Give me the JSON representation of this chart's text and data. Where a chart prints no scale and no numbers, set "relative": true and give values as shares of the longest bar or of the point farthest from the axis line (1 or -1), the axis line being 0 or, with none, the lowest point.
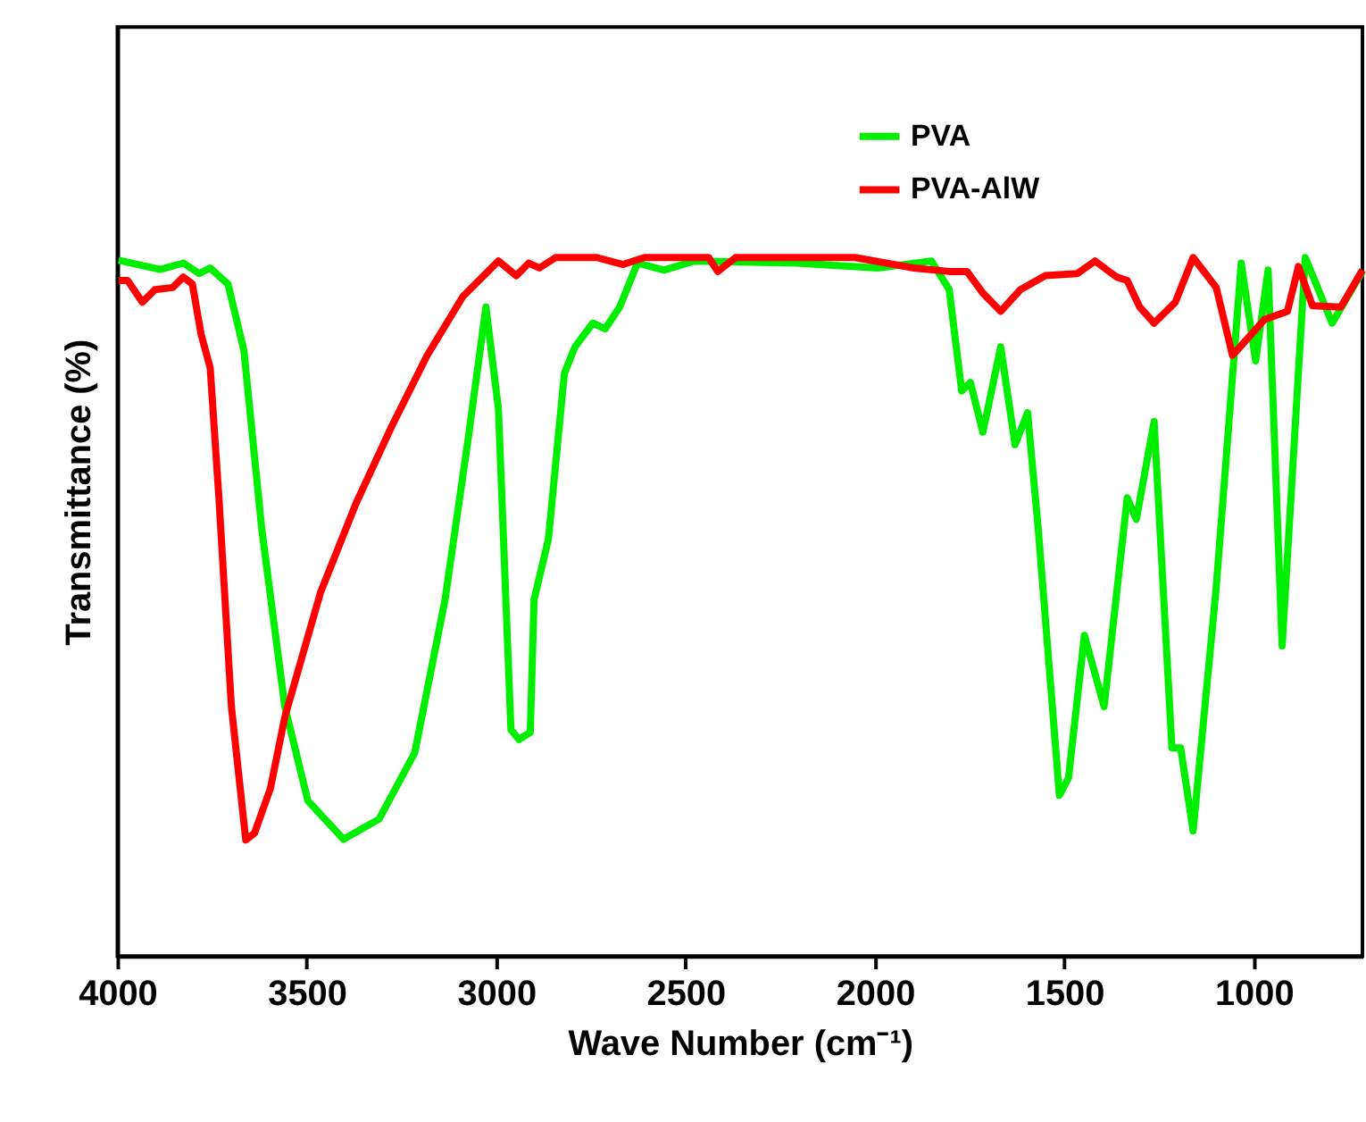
{
  "chart_data": {
    "type": "line",
    "relative": true,
    "xlabel": "Wave Number (cm⁻¹)",
    "ylabel": "Transmittance (%)",
    "xlim": [
      4000,
      713
    ],
    "xticks": [
      4000,
      3500,
      3000,
      2500,
      2000,
      1500,
      1000
    ],
    "tick_labels": "x",
    "grid": false,
    "legend": "top right",
    "line_style": "solid",
    "marker": "none",
    "series": [
      {
        "name": "PVA",
        "color": "#00ee00",
        "x": [
          3997,
          3887,
          3826,
          3784,
          3755,
          3708,
          3666,
          3619,
          3558,
          3497,
          3403,
          3309,
          3215,
          3135,
          3074,
          3027,
          2994,
          2961,
          2940,
          2910,
          2900,
          2862,
          2820,
          2792,
          2745,
          2712,
          2674,
          2627,
          2557,
          2477,
          2208,
          1992,
          1851,
          1804,
          1771,
          1748,
          1715,
          1668,
          1630,
          1597,
          1569,
          1513,
          1489,
          1447,
          1395,
          1334,
          1310,
          1263,
          1216,
          1193,
          1160,
          1099,
          1033,
          995,
          962,
          925,
          864,
          793,
          713
        ],
        "values": [
          0.996,
          0.983,
          0.992,
          0.977,
          0.985,
          0.962,
          0.867,
          0.612,
          0.357,
          0.222,
          0.167,
          0.196,
          0.291,
          0.51,
          0.74,
          0.929,
          0.783,
          0.324,
          0.31,
          0.32,
          0.51,
          0.597,
          0.834,
          0.872,
          0.906,
          0.898,
          0.929,
          0.992,
          0.982,
          0.995,
          0.992,
          0.985,
          0.995,
          0.954,
          0.809,
          0.821,
          0.75,
          0.872,
          0.732,
          0.778,
          0.612,
          0.23,
          0.255,
          0.459,
          0.357,
          0.656,
          0.625,
          0.765,
          0.298,
          0.298,
          0.179,
          0.528,
          0.992,
          0.852,
          0.982,
          0.444,
          1.0,
          0.906,
          0.98
        ]
      },
      {
        "name": "PVA-AlW",
        "color": "#ff0000",
        "x": [
          3997,
          3973,
          3934,
          3901,
          3854,
          3826,
          3802,
          3779,
          3755,
          3732,
          3699,
          3661,
          3638,
          3596,
          3558,
          3464,
          3370,
          3276,
          3182,
          3088,
          2994,
          2947,
          2914,
          2886,
          2843,
          2735,
          2665,
          2608,
          2439,
          2415,
          2368,
          2053,
          1898,
          1804,
          1757,
          1715,
          1668,
          1616,
          1550,
          1466,
          1419,
          1362,
          1334,
          1301,
          1263,
          1207,
          1160,
          1099,
          1056,
          972,
          911,
          882,
          845,
          770,
          713
        ],
        "values": [
          0.967,
          0.967,
          0.936,
          0.954,
          0.957,
          0.972,
          0.962,
          0.89,
          0.842,
          0.656,
          0.357,
          0.166,
          0.176,
          0.24,
          0.342,
          0.52,
          0.648,
          0.758,
          0.86,
          0.944,
          0.995,
          0.974,
          0.992,
          0.985,
          1.0,
          1.0,
          0.99,
          1.0,
          1.0,
          0.98,
          1.0,
          1.0,
          0.985,
          0.98,
          0.98,
          0.949,
          0.923,
          0.954,
          0.974,
          0.977,
          0.995,
          0.972,
          0.967,
          0.929,
          0.906,
          0.936,
          1.0,
          0.957,
          0.86,
          0.911,
          0.923,
          0.987,
          0.931,
          0.929,
          0.982
        ]
      }
    ]
  }
}
